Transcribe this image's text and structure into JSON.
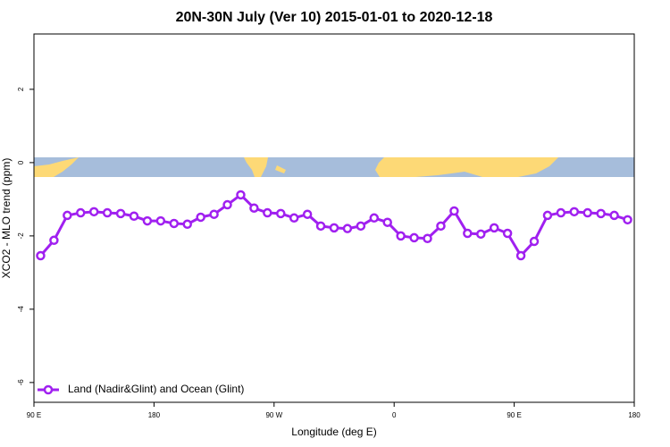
{
  "chart_data": {
    "type": "line",
    "title": "20N-30N July (Ver 10)   2015-01-01 to 2020-12-18",
    "x_label": "Longitude (deg E)",
    "y_label": "XCO2 - MLO trend (ppm)",
    "x": [
      95,
      105,
      115,
      125,
      135,
      145,
      155,
      165,
      175,
      185,
      195,
      205,
      215,
      225,
      235,
      245,
      255,
      265,
      275,
      285,
      295,
      305,
      315,
      325,
      335,
      345,
      355,
      365,
      375,
      385,
      395,
      405,
      415,
      425,
      435,
      445,
      455,
      465,
      475,
      485,
      495,
      505,
      515,
      525,
      535
    ],
    "series": [
      {
        "name": "Land (Nadir&Glint) and Ocean (Glint)",
        "color": "#a020f0",
        "values": [
          -2.54,
          -2.12,
          -1.44,
          -1.37,
          -1.34,
          -1.37,
          -1.39,
          -1.46,
          -1.59,
          -1.59,
          -1.66,
          -1.68,
          -1.49,
          -1.41,
          -1.15,
          -0.88,
          -1.24,
          -1.37,
          -1.39,
          -1.51,
          -1.41,
          -1.73,
          -1.78,
          -1.8,
          -1.73,
          -1.51,
          -1.63,
          -2.0,
          -2.05,
          -2.07,
          -1.73,
          -1.32,
          -1.93,
          -1.95,
          -1.78,
          -1.93,
          -2.54,
          -2.15,
          -1.44,
          -1.37,
          -1.34,
          -1.37,
          -1.39,
          -1.44,
          -1.56
        ]
      }
    ],
    "xlim": [
      90,
      540
    ],
    "xticks": [
      {
        "value": 90,
        "label": "90 E"
      },
      180,
      {
        "value": 270,
        "label": "90 W"
      },
      {
        "value": 360,
        "label": "0"
      },
      {
        "value": 450,
        "label": "90 E"
      },
      {
        "value": 540,
        "label": "180"
      }
    ],
    "ylim": [
      -6.54,
      3.51
    ],
    "yticks": [
      -6,
      -4,
      -2,
      0,
      2
    ],
    "legend": "bottom-left"
  }
}
